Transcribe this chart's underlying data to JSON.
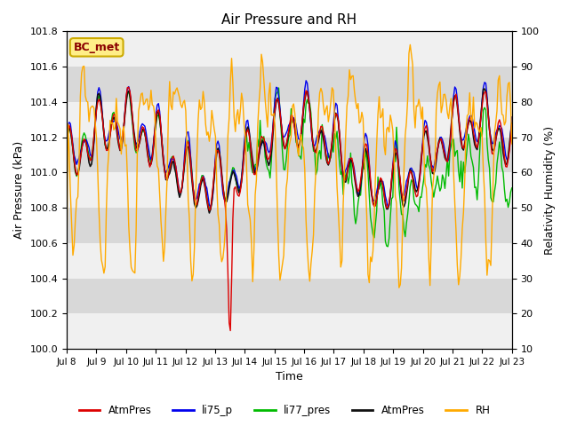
{
  "title": "Air Pressure and RH",
  "xlabel": "Time",
  "ylabel_left": "Air Pressure (kPa)",
  "ylabel_right": "Relativity Humidity (%)",
  "ylim_left": [
    100.0,
    101.8
  ],
  "ylim_right": [
    10,
    100
  ],
  "yticks_left": [
    100.0,
    100.2,
    100.4,
    100.6,
    100.8,
    101.0,
    101.2,
    101.4,
    101.6,
    101.8
  ],
  "yticks_right": [
    10,
    20,
    30,
    40,
    50,
    60,
    70,
    80,
    90,
    100
  ],
  "xtick_labels": [
    "Jul 8",
    "Jul 9",
    "Jul 10",
    "Jul 11",
    "Jul 12",
    "Jul 13",
    "Jul 14",
    "Jul 15",
    "Jul 16",
    "Jul 17",
    "Jul 18",
    "Jul 19",
    "Jul 20",
    "Jul 21",
    "Jul 22",
    "Jul 23"
  ],
  "colors": {
    "AtmPres_red": "#dd0000",
    "li75_p": "#0000ee",
    "li77_pres": "#00bb00",
    "AtmPres_black": "#111111",
    "RH": "#ffaa00"
  },
  "legend_labels": [
    "AtmPres",
    "li75_p",
    "li77_pres",
    "AtmPres",
    "RH"
  ],
  "annotation_label": "BC_met",
  "bg_band_light": "#f0f0f0",
  "bg_band_dark": "#d8d8d8",
  "fig_bg": "#ffffff"
}
